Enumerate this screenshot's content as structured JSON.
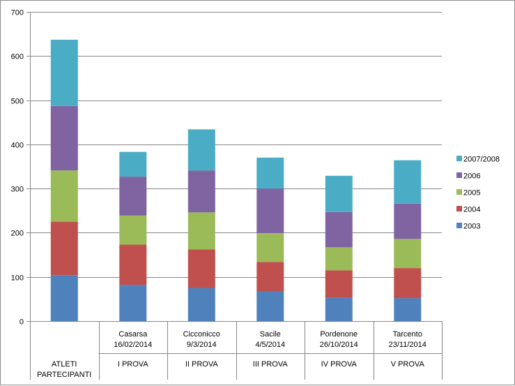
{
  "chart_data": {
    "type": "bar",
    "stacked": true,
    "title": "",
    "xlabel": "",
    "ylabel": "",
    "ylim": [
      0,
      700
    ],
    "yticks": [
      0,
      100,
      200,
      300,
      400,
      500,
      600,
      700
    ],
    "grid": true,
    "legend_position": "right",
    "categories": [
      {
        "line1": "",
        "line2": "",
        "group": "ATLETI\nPARTECIPANTI"
      },
      {
        "line1": "Casarsa",
        "line2": "16/02/2014",
        "group": "I PROVA"
      },
      {
        "line1": "Cicconicco",
        "line2": "9/3/2014",
        "group": "II PROVA"
      },
      {
        "line1": "Sacile",
        "line2": "4/5/2014",
        "group": "III PROVA"
      },
      {
        "line1": "Pordenone",
        "line2": "26/10/2014",
        "group": "IV PROVA"
      },
      {
        "line1": "Tarcento",
        "line2": "23/11/2014",
        "group": "V PROVA"
      }
    ],
    "series": [
      {
        "name": "2003",
        "color": "#4F81BD",
        "values": [
          104,
          82,
          75,
          68,
          53,
          52
        ]
      },
      {
        "name": "2004",
        "color": "#C0504D",
        "values": [
          121,
          91,
          87,
          66,
          62,
          68
        ]
      },
      {
        "name": "2005",
        "color": "#9BBB59",
        "values": [
          116,
          66,
          84,
          65,
          52,
          66
        ]
      },
      {
        "name": "2006",
        "color": "#8064A2",
        "values": [
          146,
          88,
          95,
          101,
          80,
          80
        ]
      },
      {
        "name": "2007/2008",
        "color": "#4BACC6",
        "values": [
          150,
          56,
          93,
          70,
          82,
          98
        ]
      }
    ]
  }
}
